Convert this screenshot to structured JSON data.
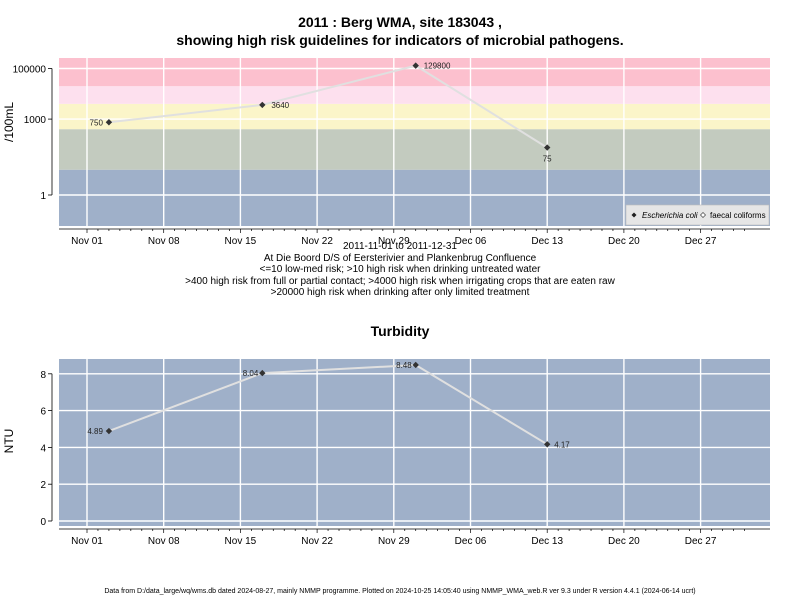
{
  "titles": {
    "line1": "2011 : Berg WMA, site 183043 ,",
    "line2": "showing high risk guidelines for indicators of microbial pathogens.",
    "turbidity": "Turbidity"
  },
  "notes": [
    "2011-11-01 to 2011-12-31",
    "At Die Boord D/S of Eersterivier and Plankenbrug Confluence",
    "<=10 low-med risk; >10 high risk when drinking untreated water",
    ">400 high risk from full or partial contact; >4000 high risk when irrigating crops that are eaten raw",
    ">20000 high risk when drinking after only limited treatment"
  ],
  "footer": "Data from D:/data_large/wq/wms.db dated 2024-08-27, mainly NMMP programme. Plotted on 2024-10-25 14:05:40 using NMMP_WMA_web.R ver 9.3 under R version 4.4.1 (2024-06-14 ucrt)",
  "colors": {
    "band_blue": "#9fb0c9",
    "band_green": "#c3cbbf",
    "band_yellow": "#fbf5c9",
    "band_pink_light": "#fde0ee",
    "band_pink": "#fcc0ce",
    "grid": "#ffffff",
    "series_line": "#e0e0e0",
    "point": "#333333"
  },
  "chart_data": [
    {
      "type": "line",
      "ylabel": "/100mL",
      "yscale": "log",
      "xticks": [
        "Nov 01",
        "Nov 08",
        "Nov 15",
        "Nov 22",
        "Nov 29",
        "Dec 06",
        "Dec 13",
        "Dec 20",
        "Dec 27"
      ],
      "yticks": [
        "1",
        "1000",
        "100000"
      ],
      "bands": [
        {
          "from": 0,
          "to": 10,
          "color": "band_blue"
        },
        {
          "from": 10,
          "to": 400,
          "color": "band_green"
        },
        {
          "from": 400,
          "to": 4000,
          "color": "band_yellow"
        },
        {
          "from": 4000,
          "to": 20000,
          "color": "band_pink_light"
        },
        {
          "from": 20000,
          "to": 1000000,
          "color": "band_pink"
        }
      ],
      "series": [
        {
          "name": "Escherichia coli",
          "points": [
            {
              "date": "2011-11-03",
              "y": 750,
              "label": "750"
            },
            {
              "date": "2011-11-17",
              "y": 3640,
              "label": "3640"
            },
            {
              "date": "2011-12-01",
              "y": 129800,
              "label": "129800"
            },
            {
              "date": "2011-12-13",
              "y": 75,
              "label": "75"
            }
          ]
        },
        {
          "name": "faecal coliforms",
          "points": []
        }
      ],
      "legend": {
        "placement": "bottom-right",
        "items": [
          "Escherichia coli",
          "faecal coliforms"
        ]
      }
    },
    {
      "type": "line",
      "title": "Turbidity",
      "ylabel": "NTU",
      "ylim": [
        0,
        8.7
      ],
      "xticks": [
        "Nov 01",
        "Nov 08",
        "Nov 15",
        "Nov 22",
        "Nov 29",
        "Dec 06",
        "Dec 13",
        "Dec 20",
        "Dec 27"
      ],
      "yticks": [
        "0",
        "2",
        "4",
        "6",
        "8"
      ],
      "series": [
        {
          "points": [
            {
              "date": "2011-11-03",
              "y": 4.89,
              "label": "4.89"
            },
            {
              "date": "2011-11-17",
              "y": 8.04,
              "label": "8.04"
            },
            {
              "date": "2011-12-01",
              "y": 8.48,
              "label": "8.48"
            },
            {
              "date": "2011-12-13",
              "y": 4.17,
              "label": "4.17"
            }
          ]
        }
      ]
    }
  ]
}
